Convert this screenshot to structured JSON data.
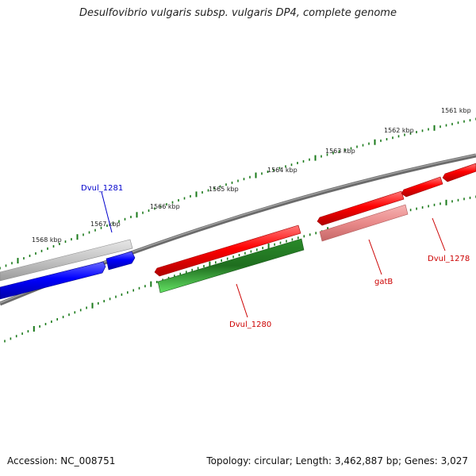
{
  "title": "Desulfovibrio vulgaris subsp. vulgaris DP4, complete genome",
  "footer": {
    "accession": "Accession: NC_008751",
    "summary": "Topology: circular; Length: 3,462,887 bp; Genes: 3,027"
  },
  "ruler_labels": [
    "1561 kbp",
    "1562 kbp",
    "1563 kbp",
    "1564 kbp",
    "1565 kbp",
    "1566 kbp",
    "1567 kbp",
    "1568 kbp"
  ],
  "features": [
    {
      "id": "dvul1281",
      "label": "Dvul_1281",
      "color": "#0000ff"
    },
    {
      "id": "dvul1280",
      "label": "Dvul_1280",
      "color": "#ff0000"
    },
    {
      "id": "gatb",
      "label": "gatB",
      "color": "#ff0000"
    },
    {
      "id": "dvul1278",
      "label": "Dvul_1278",
      "color": "#ff0000"
    }
  ],
  "colors": {
    "backbone": "#808080",
    "tick": "#1a7a1a",
    "forward_gene": "#ff0000",
    "reverse_gene": "#0000ff",
    "cds_green": "#2db82d",
    "rna_pink": "#e98a8a",
    "gray_feature": "#bdbdbd"
  }
}
